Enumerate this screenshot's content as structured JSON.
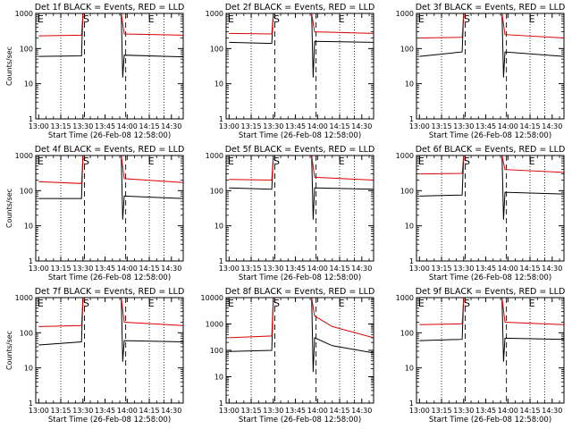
{
  "chart_data": [
    {
      "type": "line",
      "title": "Det 1f BLACK = Events, RED = LLD",
      "xlabel": "Start Time (26-Feb-08 12:58:00)",
      "ylabel": "Counts/sec",
      "x_ticks": [
        "13:00",
        "13:15",
        "13:30",
        "13:45",
        "14:00",
        "14:15",
        "14:30"
      ],
      "y_ticks": [
        "1",
        "10",
        "100",
        "1000"
      ],
      "yscale": "log",
      "ylim": [
        1,
        1000
      ],
      "markers": [
        {
          "label": "E",
          "time": "13:00"
        },
        {
          "label": "S",
          "time": "13:31"
        },
        {
          "label": "E",
          "time": "14:15"
        }
      ],
      "series": [
        {
          "color": "#000000",
          "values": [
            {
              "x": "13:00",
              "y": 60
            },
            {
              "x": "13:29",
              "y": 62
            },
            {
              "x": "13:30",
              "y": 1000
            },
            {
              "x": "13:56",
              "y": 1000
            },
            {
              "x": "13:57",
              "y": 15
            },
            {
              "x": "13:58",
              "y": 65
            },
            {
              "x": "14:38",
              "y": 58
            }
          ]
        },
        {
          "color": "#dd0000",
          "values": [
            {
              "x": "13:00",
              "y": 230
            },
            {
              "x": "13:29",
              "y": 240
            },
            {
              "x": "13:30",
              "y": 1000
            },
            {
              "x": "13:56",
              "y": 1000
            },
            {
              "x": "13:58",
              "y": 260
            },
            {
              "x": "14:38",
              "y": 240
            }
          ]
        }
      ]
    },
    {
      "type": "line",
      "title": "Det 2f BLACK = Events, RED = LLD",
      "xlabel": "Start Time (26-Feb-08 12:58:00)",
      "ylabel": "",
      "x_ticks": [
        "13:00",
        "13:15",
        "13:30",
        "13:45",
        "14:00",
        "14:15",
        "14:30"
      ],
      "y_ticks": [
        "1",
        "10",
        "100",
        "1000"
      ],
      "yscale": "log",
      "ylim": [
        1,
        1000
      ],
      "markers": [
        {
          "label": "E",
          "time": "13:00"
        },
        {
          "label": "S",
          "time": "13:31"
        },
        {
          "label": "E",
          "time": "14:15"
        }
      ],
      "series": [
        {
          "color": "#000000",
          "values": [
            {
              "x": "13:00",
              "y": 150
            },
            {
              "x": "13:29",
              "y": 140
            },
            {
              "x": "13:30",
              "y": 1000
            },
            {
              "x": "13:56",
              "y": 1000
            },
            {
              "x": "13:57",
              "y": 15
            },
            {
              "x": "13:58",
              "y": 160
            },
            {
              "x": "14:38",
              "y": 150
            }
          ]
        },
        {
          "color": "#dd0000",
          "values": [
            {
              "x": "13:00",
              "y": 270
            },
            {
              "x": "13:29",
              "y": 260
            },
            {
              "x": "13:30",
              "y": 1000
            },
            {
              "x": "13:56",
              "y": 1000
            },
            {
              "x": "13:58",
              "y": 300
            },
            {
              "x": "14:38",
              "y": 270
            }
          ]
        }
      ]
    },
    {
      "type": "line",
      "title": "Det 3f BLACK = Events, RED = LLD",
      "xlabel": "Start Time (26-Feb-08 12:58:00)",
      "ylabel": "",
      "x_ticks": [
        "13:00",
        "13:15",
        "13:30",
        "13:45",
        "14:00",
        "14:15",
        "14:30"
      ],
      "y_ticks": [
        "1",
        "10",
        "100",
        "1000"
      ],
      "yscale": "log",
      "ylim": [
        1,
        1000
      ],
      "markers": [
        {
          "label": "E",
          "time": "13:00"
        },
        {
          "label": "S",
          "time": "13:31"
        },
        {
          "label": "E",
          "time": "14:15"
        }
      ],
      "series": [
        {
          "color": "#000000",
          "values": [
            {
              "x": "13:00",
              "y": 60
            },
            {
              "x": "13:29",
              "y": 80
            },
            {
              "x": "13:30",
              "y": 1000
            },
            {
              "x": "13:56",
              "y": 1000
            },
            {
              "x": "13:57",
              "y": 15
            },
            {
              "x": "13:58",
              "y": 80
            },
            {
              "x": "14:38",
              "y": 60
            }
          ]
        },
        {
          "color": "#dd0000",
          "values": [
            {
              "x": "13:00",
              "y": 200
            },
            {
              "x": "13:29",
              "y": 210
            },
            {
              "x": "13:30",
              "y": 1000
            },
            {
              "x": "13:56",
              "y": 1000
            },
            {
              "x": "13:58",
              "y": 250
            },
            {
              "x": "14:38",
              "y": 200
            }
          ]
        }
      ]
    },
    {
      "type": "line",
      "title": "Det 4f BLACK = Events, RED = LLD",
      "xlabel": "Start Time (26-Feb-08 12:58:00)",
      "ylabel": "Counts/sec",
      "x_ticks": [
        "13:00",
        "13:15",
        "13:30",
        "13:45",
        "14:00",
        "14:15",
        "14:30"
      ],
      "y_ticks": [
        "1",
        "10",
        "100",
        "1000"
      ],
      "yscale": "log",
      "ylim": [
        1,
        1000
      ],
      "markers": [
        {
          "label": "E",
          "time": "13:00"
        },
        {
          "label": "S",
          "time": "13:31"
        },
        {
          "label": "E",
          "time": "14:15"
        }
      ],
      "series": [
        {
          "color": "#000000",
          "values": [
            {
              "x": "13:00",
              "y": 60
            },
            {
              "x": "13:29",
              "y": 60
            },
            {
              "x": "13:30",
              "y": 1000
            },
            {
              "x": "13:56",
              "y": 1000
            },
            {
              "x": "13:57",
              "y": 15
            },
            {
              "x": "13:58",
              "y": 70
            },
            {
              "x": "14:38",
              "y": 60
            }
          ]
        },
        {
          "color": "#dd0000",
          "values": [
            {
              "x": "13:00",
              "y": 180
            },
            {
              "x": "13:29",
              "y": 160
            },
            {
              "x": "13:30",
              "y": 1000
            },
            {
              "x": "13:56",
              "y": 1000
            },
            {
              "x": "13:58",
              "y": 220
            },
            {
              "x": "14:38",
              "y": 170
            }
          ]
        }
      ]
    },
    {
      "type": "line",
      "title": "Det 5f BLACK = Events, RED = LLD",
      "xlabel": "Start Time (26-Feb-08 12:58:00)",
      "ylabel": "",
      "x_ticks": [
        "13:00",
        "13:15",
        "13:30",
        "13:45",
        "14:00",
        "14:15",
        "14:30"
      ],
      "y_ticks": [
        "1",
        "10",
        "100",
        "1000"
      ],
      "yscale": "log",
      "ylim": [
        1,
        1000
      ],
      "markers": [
        {
          "label": "E",
          "time": "13:00"
        },
        {
          "label": "S",
          "time": "13:31"
        },
        {
          "label": "E",
          "time": "14:15"
        }
      ],
      "series": [
        {
          "color": "#000000",
          "values": [
            {
              "x": "13:00",
              "y": 120
            },
            {
              "x": "13:29",
              "y": 110
            },
            {
              "x": "13:30",
              "y": 1000
            },
            {
              "x": "13:56",
              "y": 1000
            },
            {
              "x": "13:57",
              "y": 15
            },
            {
              "x": "13:58",
              "y": 120
            },
            {
              "x": "14:38",
              "y": 110
            }
          ]
        },
        {
          "color": "#dd0000",
          "values": [
            {
              "x": "13:00",
              "y": 210
            },
            {
              "x": "13:29",
              "y": 200
            },
            {
              "x": "13:30",
              "y": 1000
            },
            {
              "x": "13:56",
              "y": 1000
            },
            {
              "x": "13:58",
              "y": 240
            },
            {
              "x": "14:38",
              "y": 200
            }
          ]
        }
      ]
    },
    {
      "type": "line",
      "title": "Det 6f BLACK = Events, RED = LLD",
      "xlabel": "Start Time (26-Feb-08 12:58:00)",
      "ylabel": "",
      "x_ticks": [
        "13:00",
        "13:15",
        "13:30",
        "13:45",
        "14:00",
        "14:15",
        "14:30"
      ],
      "y_ticks": [
        "1",
        "10",
        "100",
        "1000"
      ],
      "yscale": "log",
      "ylim": [
        1,
        1000
      ],
      "markers": [
        {
          "label": "E",
          "time": "13:00"
        },
        {
          "label": "S",
          "time": "13:31"
        },
        {
          "label": "E",
          "time": "14:15"
        }
      ],
      "series": [
        {
          "color": "#000000",
          "values": [
            {
              "x": "13:00",
              "y": 70
            },
            {
              "x": "13:29",
              "y": 75
            },
            {
              "x": "13:30",
              "y": 1000
            },
            {
              "x": "13:56",
              "y": 1000
            },
            {
              "x": "13:57",
              "y": 15
            },
            {
              "x": "13:58",
              "y": 90
            },
            {
              "x": "14:38",
              "y": 80
            }
          ]
        },
        {
          "color": "#dd0000",
          "values": [
            {
              "x": "13:00",
              "y": 300
            },
            {
              "x": "13:29",
              "y": 310
            },
            {
              "x": "13:30",
              "y": 1000
            },
            {
              "x": "13:56",
              "y": 1000
            },
            {
              "x": "13:58",
              "y": 400
            },
            {
              "x": "14:38",
              "y": 330
            }
          ]
        }
      ]
    },
    {
      "type": "line",
      "title": "Det 7f BLACK = Events, RED = LLD",
      "xlabel": "Start Time (26-Feb-08 12:58:00)",
      "ylabel": "Counts/sec",
      "x_ticks": [
        "13:00",
        "13:15",
        "13:30",
        "13:45",
        "14:00",
        "14:15",
        "14:30"
      ],
      "y_ticks": [
        "1",
        "10",
        "100",
        "1000"
      ],
      "yscale": "log",
      "ylim": [
        1,
        1000
      ],
      "markers": [
        {
          "label": "E",
          "time": "13:00"
        },
        {
          "label": "S",
          "time": "13:31"
        },
        {
          "label": "E",
          "time": "14:15"
        }
      ],
      "series": [
        {
          "color": "#000000",
          "values": [
            {
              "x": "13:00",
              "y": 45
            },
            {
              "x": "13:29",
              "y": 55
            },
            {
              "x": "13:30",
              "y": 1000
            },
            {
              "x": "13:56",
              "y": 1000
            },
            {
              "x": "13:57",
              "y": 15
            },
            {
              "x": "13:58",
              "y": 60
            },
            {
              "x": "14:38",
              "y": 55
            }
          ]
        },
        {
          "color": "#dd0000",
          "values": [
            {
              "x": "13:00",
              "y": 150
            },
            {
              "x": "13:29",
              "y": 160
            },
            {
              "x": "13:30",
              "y": 1000
            },
            {
              "x": "13:56",
              "y": 1000
            },
            {
              "x": "13:58",
              "y": 200
            },
            {
              "x": "14:38",
              "y": 160
            }
          ]
        }
      ]
    },
    {
      "type": "line",
      "title": "Det 8f BLACK = Events, RED = LLD",
      "xlabel": "Start Time (26-Feb-08 12:58:00)",
      "ylabel": "",
      "x_ticks": [
        "13:00",
        "13:15",
        "13:30",
        "13:45",
        "14:00",
        "14:15",
        "14:30"
      ],
      "y_ticks": [
        "1",
        "10",
        "100",
        "1000",
        "10000"
      ],
      "yscale": "log",
      "ylim": [
        1,
        10000
      ],
      "markers": [
        {
          "label": "E",
          "time": "13:00"
        },
        {
          "label": "S",
          "time": "13:31"
        },
        {
          "label": "E",
          "time": "14:15"
        }
      ],
      "series": [
        {
          "color": "#000000",
          "values": [
            {
              "x": "13:00",
              "y": 90
            },
            {
              "x": "13:29",
              "y": 100
            },
            {
              "x": "13:30",
              "y": 10000
            },
            {
              "x": "13:56",
              "y": 10000
            },
            {
              "x": "13:57",
              "y": 15
            },
            {
              "x": "13:58",
              "y": 300
            },
            {
              "x": "14:10",
              "y": 150
            },
            {
              "x": "14:38",
              "y": 80
            }
          ]
        },
        {
          "color": "#dd0000",
          "values": [
            {
              "x": "13:00",
              "y": 300
            },
            {
              "x": "13:29",
              "y": 350
            },
            {
              "x": "13:30",
              "y": 10000
            },
            {
              "x": "13:56",
              "y": 10000
            },
            {
              "x": "13:58",
              "y": 2000
            },
            {
              "x": "14:10",
              "y": 800
            },
            {
              "x": "14:38",
              "y": 300
            }
          ]
        }
      ]
    },
    {
      "type": "line",
      "title": "Det 9f BLACK = Events, RED = LLD",
      "xlabel": "Start Time (26-Feb-08 12:58:00)",
      "ylabel": "",
      "x_ticks": [
        "13:00",
        "13:15",
        "13:30",
        "13:45",
        "14:00",
        "14:15",
        "14:30"
      ],
      "y_ticks": [
        "1",
        "10",
        "100",
        "1000"
      ],
      "yscale": "log",
      "ylim": [
        1,
        1000
      ],
      "markers": [
        {
          "label": "E",
          "time": "13:00"
        },
        {
          "label": "S",
          "time": "13:31"
        },
        {
          "label": "E",
          "time": "14:15"
        }
      ],
      "series": [
        {
          "color": "#000000",
          "values": [
            {
              "x": "13:00",
              "y": 60
            },
            {
              "x": "13:29",
              "y": 65
            },
            {
              "x": "13:30",
              "y": 1000
            },
            {
              "x": "13:56",
              "y": 1000
            },
            {
              "x": "13:57",
              "y": 15
            },
            {
              "x": "13:58",
              "y": 70
            },
            {
              "x": "14:38",
              "y": 65
            }
          ]
        },
        {
          "color": "#dd0000",
          "values": [
            {
              "x": "13:00",
              "y": 170
            },
            {
              "x": "13:29",
              "y": 180
            },
            {
              "x": "13:30",
              "y": 1000
            },
            {
              "x": "13:56",
              "y": 1000
            },
            {
              "x": "13:58",
              "y": 200
            },
            {
              "x": "14:38",
              "y": 170
            }
          ]
        }
      ]
    }
  ]
}
